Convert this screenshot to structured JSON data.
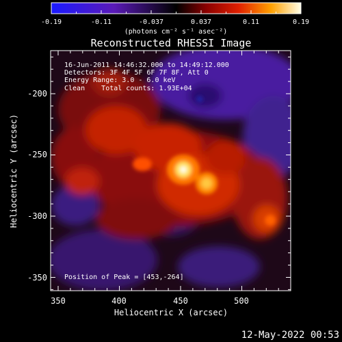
{
  "colorbar": {
    "tick_labels": [
      "-0.19",
      "-0.11",
      "-0.037",
      "0.037",
      "0.11",
      "0.19"
    ],
    "units_label": "(photons cm⁻² s⁻¹ asec⁻²)"
  },
  "title": "Reconstructed RHESSI Image",
  "annotations": {
    "time_range": "16-Jun-2011 14:46:32.000 to 14:49:12.000",
    "detectors": "Detectors: 3F 4F 5F 6F 7F 8F, Att 0",
    "energy_range": "Energy Range: 3.0 - 6.0 keV",
    "algorithm_counts": "Clean    Total counts: 1.93E+04",
    "peak_position": "Position of Peak = [453,-264]"
  },
  "axes": {
    "x_label": "Heliocentric X (arcsec)",
    "y_label": "Heliocentric Y (arcsec)",
    "x_ticks": [
      "350",
      "400",
      "450",
      "500"
    ],
    "y_ticks": [
      "-200",
      "-250",
      "-300",
      "-350"
    ]
  },
  "footer_date": "12-May-2022 00:53",
  "colors": {
    "background": "#000000",
    "negative_end": "#1a1aff",
    "zero": "#000000",
    "positive_end": "#ffffe8"
  }
}
